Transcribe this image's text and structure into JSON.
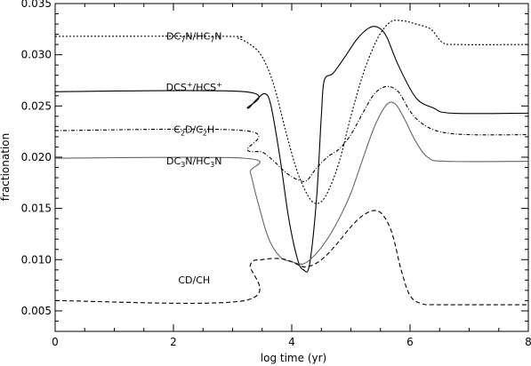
{
  "chart_data": {
    "type": "line",
    "title": "",
    "xlabel": "log time (yr)",
    "ylabel": "fractionation",
    "xlim": [
      0,
      8
    ],
    "ylim": [
      0.003,
      0.035
    ],
    "xticks": [
      0,
      2,
      4,
      6,
      8
    ],
    "xtick_labels": [
      "0",
      "2",
      "4",
      "6",
      "8"
    ],
    "yticks": [
      0.005,
      0.01,
      0.015,
      0.02,
      0.025,
      0.03,
      0.035
    ],
    "ytick_labels": [
      "0.005",
      "0.010",
      "0.015",
      "0.020",
      "0.025",
      "0.030",
      "0.035"
    ],
    "grid": false,
    "legend": "none (curves labelled directly)",
    "series": [
      {
        "name": "DC7N/HC7N",
        "label_parts": [
          [
            "DC",
            "n"
          ],
          [
            "7",
            "sub"
          ],
          [
            "N/HC",
            "n"
          ],
          [
            "7",
            "sub"
          ],
          [
            "N",
            "n"
          ]
        ],
        "color": "#000000",
        "dash": "2,2",
        "points": [
          [
            0,
            0.0318
          ],
          [
            2.9,
            0.0318
          ],
          [
            3.1,
            0.0316
          ],
          [
            3.3,
            0.031
          ],
          [
            3.5,
            0.0298
          ],
          [
            3.7,
            0.027
          ],
          [
            3.9,
            0.0225
          ],
          [
            4.1,
            0.0185
          ],
          [
            4.3,
            0.016
          ],
          [
            4.45,
            0.0155
          ],
          [
            4.6,
            0.0165
          ],
          [
            4.8,
            0.0195
          ],
          [
            5.0,
            0.024
          ],
          [
            5.2,
            0.028
          ],
          [
            5.4,
            0.031
          ],
          [
            5.55,
            0.0325
          ],
          [
            5.7,
            0.0333
          ],
          [
            5.9,
            0.0333
          ],
          [
            6.1,
            0.033
          ],
          [
            6.35,
            0.0325
          ],
          [
            6.55,
            0.0312
          ],
          [
            6.8,
            0.031
          ],
          [
            8,
            0.031
          ]
        ]
      },
      {
        "name": "DCS+/HCS+",
        "label_parts": [
          [
            "DCS",
            "n"
          ],
          [
            "+",
            "sup"
          ],
          [
            "/HCS",
            "n"
          ],
          [
            "+",
            "sup"
          ]
        ],
        "color": "#000000",
        "dash": "",
        "points": [
          [
            0,
            0.0264
          ],
          [
            3.2,
            0.0264
          ],
          [
            3.25,
            0.0248
          ],
          [
            3.4,
            0.0256
          ],
          [
            3.55,
            0.0262
          ],
          [
            3.65,
            0.025
          ],
          [
            3.8,
            0.02
          ],
          [
            3.95,
            0.014
          ],
          [
            4.1,
            0.01
          ],
          [
            4.2,
            0.009
          ],
          [
            4.3,
            0.0095
          ],
          [
            4.42,
            0.016
          ],
          [
            4.5,
            0.024
          ],
          [
            4.55,
            0.0275
          ],
          [
            4.7,
            0.0282
          ],
          [
            4.9,
            0.0298
          ],
          [
            5.1,
            0.0315
          ],
          [
            5.3,
            0.0326
          ],
          [
            5.45,
            0.0327
          ],
          [
            5.6,
            0.0318
          ],
          [
            5.8,
            0.029
          ],
          [
            6.1,
            0.0258
          ],
          [
            6.4,
            0.0248
          ],
          [
            6.7,
            0.0243
          ],
          [
            8,
            0.0243
          ]
        ]
      },
      {
        "name": "C2D/C2H",
        "label_parts": [
          [
            "C",
            "n"
          ],
          [
            "2",
            "sub"
          ],
          [
            "D/C",
            "n"
          ],
          [
            "2",
            "sub"
          ],
          [
            "H",
            "n"
          ]
        ],
        "color": "#000000",
        "dash": "4,2,1,2",
        "points": [
          [
            0,
            0.0226
          ],
          [
            3.2,
            0.0226
          ],
          [
            3.25,
            0.0207
          ],
          [
            3.5,
            0.0205
          ],
          [
            3.7,
            0.0196
          ],
          [
            3.9,
            0.0185
          ],
          [
            4.1,
            0.0178
          ],
          [
            4.25,
            0.0177
          ],
          [
            4.4,
            0.0188
          ],
          [
            4.6,
            0.02
          ],
          [
            4.8,
            0.0208
          ],
          [
            5.0,
            0.0222
          ],
          [
            5.2,
            0.0243
          ],
          [
            5.4,
            0.0262
          ],
          [
            5.6,
            0.0269
          ],
          [
            5.8,
            0.0264
          ],
          [
            6.0,
            0.0245
          ],
          [
            6.2,
            0.0233
          ],
          [
            6.5,
            0.0225
          ],
          [
            7,
            0.0222
          ],
          [
            8,
            0.0222
          ]
        ]
      },
      {
        "name": "DC3N/HC3N",
        "label_parts": [
          [
            "DC",
            "n"
          ],
          [
            "3",
            "sub"
          ],
          [
            "N/HC",
            "n"
          ],
          [
            "3",
            "sub"
          ],
          [
            "N",
            "n"
          ]
        ],
        "color": "#666666",
        "dash": "",
        "points": [
          [
            0,
            0.0199
          ],
          [
            3.2,
            0.0199
          ],
          [
            3.3,
            0.0185
          ],
          [
            3.4,
            0.0162
          ],
          [
            3.6,
            0.0122
          ],
          [
            3.8,
            0.0103
          ],
          [
            4.0,
            0.0098
          ],
          [
            4.2,
            0.0096
          ],
          [
            4.4,
            0.0105
          ],
          [
            4.6,
            0.012
          ],
          [
            4.8,
            0.014
          ],
          [
            5.0,
            0.0165
          ],
          [
            5.2,
            0.0198
          ],
          [
            5.4,
            0.023
          ],
          [
            5.6,
            0.0251
          ],
          [
            5.75,
            0.0252
          ],
          [
            5.9,
            0.0238
          ],
          [
            6.1,
            0.0215
          ],
          [
            6.3,
            0.02
          ],
          [
            6.6,
            0.0196
          ],
          [
            8,
            0.0196
          ]
        ]
      },
      {
        "name": "CD/CH",
        "label_parts": [
          [
            "CD/CH",
            "n"
          ]
        ],
        "color": "#000000",
        "dash": "5,3",
        "points": [
          [
            0,
            0.006
          ],
          [
            3.2,
            0.006
          ],
          [
            3.3,
            0.0095
          ],
          [
            3.5,
            0.01
          ],
          [
            3.8,
            0.0101
          ],
          [
            4.0,
            0.0098
          ],
          [
            4.2,
            0.0093
          ],
          [
            4.4,
            0.0096
          ],
          [
            4.6,
            0.0105
          ],
          [
            4.8,
            0.0118
          ],
          [
            5.0,
            0.0132
          ],
          [
            5.2,
            0.0143
          ],
          [
            5.4,
            0.0148
          ],
          [
            5.55,
            0.0143
          ],
          [
            5.7,
            0.0125
          ],
          [
            5.85,
            0.009
          ],
          [
            6.0,
            0.0065
          ],
          [
            6.2,
            0.0057
          ],
          [
            6.5,
            0.0056
          ],
          [
            8,
            0.0056
          ]
        ]
      }
    ],
    "labels": [
      {
        "series": 0,
        "x": 2.35,
        "y": 0.0315
      },
      {
        "series": 1,
        "x": 2.35,
        "y": 0.0265
      },
      {
        "series": 2,
        "x": 2.35,
        "y": 0.0224
      },
      {
        "series": 3,
        "x": 2.35,
        "y": 0.0193
      },
      {
        "series": 4,
        "x": 2.35,
        "y": 0.0077
      }
    ]
  }
}
